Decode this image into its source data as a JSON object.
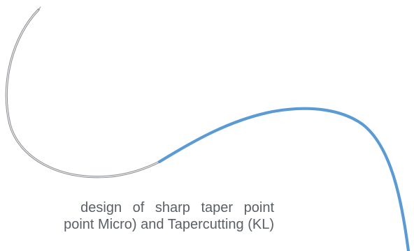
{
  "caption": {
    "line1": "design of sharp taper point",
    "line2": "point Micro) and Tapercutting (KL)"
  },
  "colors": {
    "needle_outline": "#8a8d91",
    "needle_fill": "#e9eaec",
    "suture": "#5b9bd5",
    "caption_text": "#5a5f66",
    "background": "#ffffff"
  },
  "illustration": {
    "needle": "curved-suture-needle",
    "thread": "blue-suture-thread"
  }
}
